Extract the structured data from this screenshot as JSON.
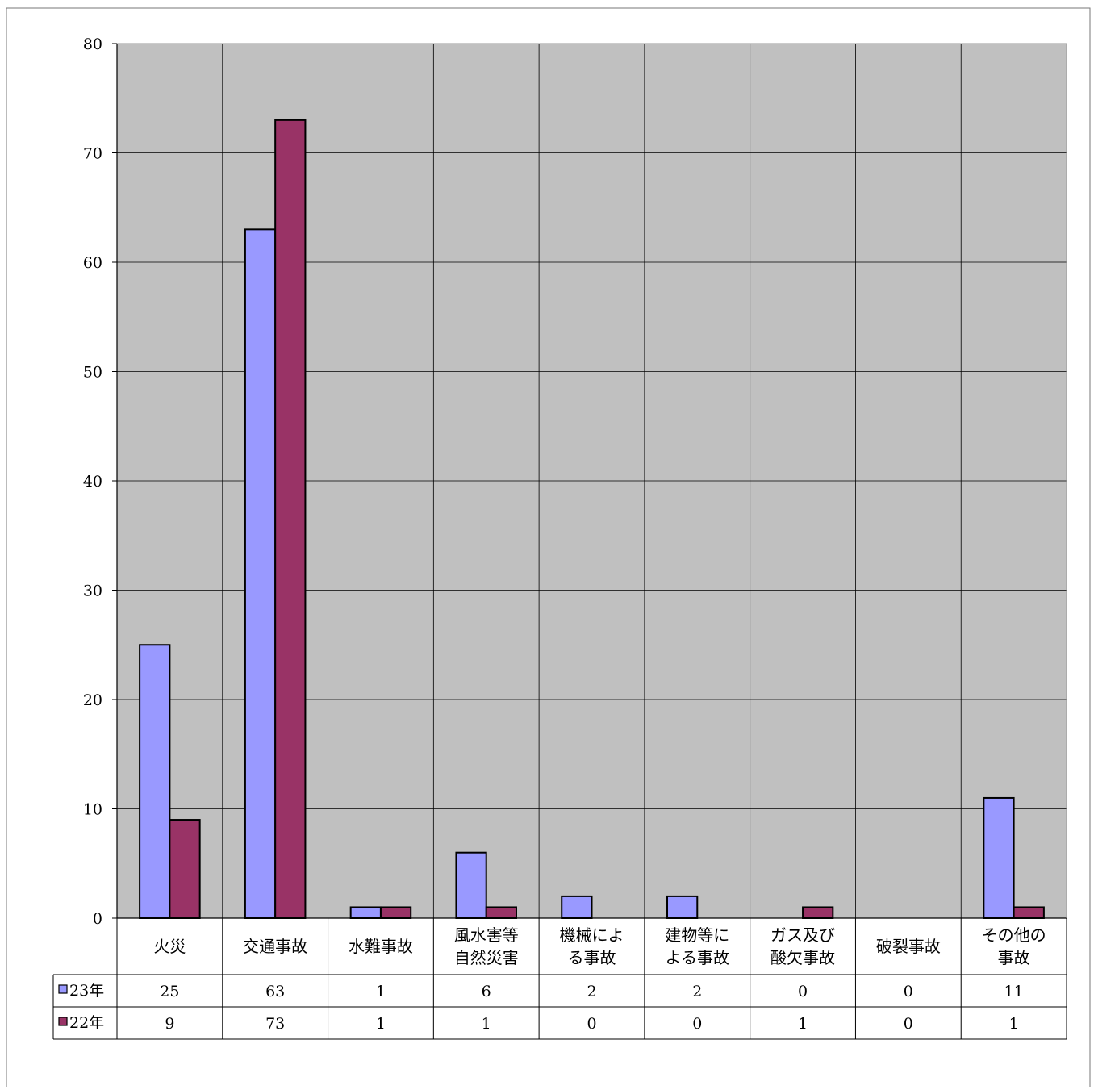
{
  "chart_data": {
    "type": "bar",
    "categories": [
      [
        "火災"
      ],
      [
        "交通事故"
      ],
      [
        "水難事故"
      ],
      [
        "風水害等",
        "自然災害"
      ],
      [
        "機械によ",
        "る事故"
      ],
      [
        "建物等に",
        "よる事故"
      ],
      [
        "ガス及び",
        "酸欠事故"
      ],
      [
        "破裂事故"
      ],
      [
        "その他の",
        "事故"
      ]
    ],
    "series": [
      {
        "name": "23年",
        "color": "#9999ff",
        "values": [
          25,
          63,
          1,
          6,
          2,
          2,
          0,
          0,
          11
        ]
      },
      {
        "name": "22年",
        "color": "#993366",
        "values": [
          9,
          73,
          1,
          1,
          0,
          0,
          1,
          0,
          1
        ]
      }
    ],
    "ylim": [
      0,
      80
    ],
    "yticks": [
      0,
      10,
      20,
      30,
      40,
      50,
      60,
      70,
      80
    ],
    "grid": true,
    "plot_background": "#c0c0c0",
    "data_table": true
  }
}
